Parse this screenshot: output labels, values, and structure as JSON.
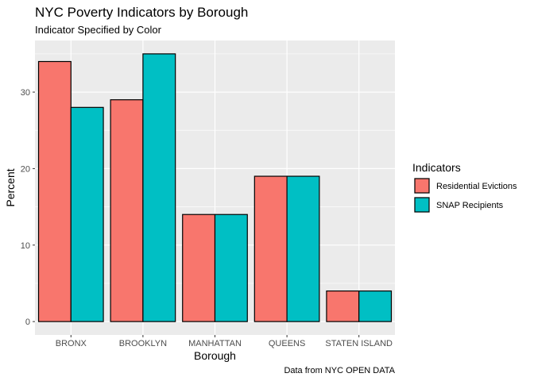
{
  "chart_data": {
    "type": "bar",
    "title": "NYC Poverty Indicators by Borough",
    "subtitle": "Indicator Specified by Color",
    "xlabel": "Borough",
    "ylabel": "Percent",
    "caption": "Data from NYC OPEN DATA",
    "categories": [
      "BRONX",
      "BROOKLYN",
      "MANHATTAN",
      "QUEENS",
      "STATEN ISLAND"
    ],
    "series": [
      {
        "name": "Residential Evictions",
        "values": [
          34,
          29,
          14,
          19,
          4
        ],
        "color": "#F8766D"
      },
      {
        "name": "SNAP Recipients",
        "values": [
          28,
          35,
          14,
          19,
          4
        ],
        "color": "#00BFC4"
      }
    ],
    "yticks": [
      0,
      10,
      20,
      30
    ],
    "ylim": [
      -1.75,
      36.75
    ],
    "grid": true,
    "legend": {
      "title": "Indicators",
      "position": "right"
    },
    "panel_background": "#EBEBEB",
    "gridline_color": "#FFFFFF",
    "bar_outline": "#000000"
  }
}
